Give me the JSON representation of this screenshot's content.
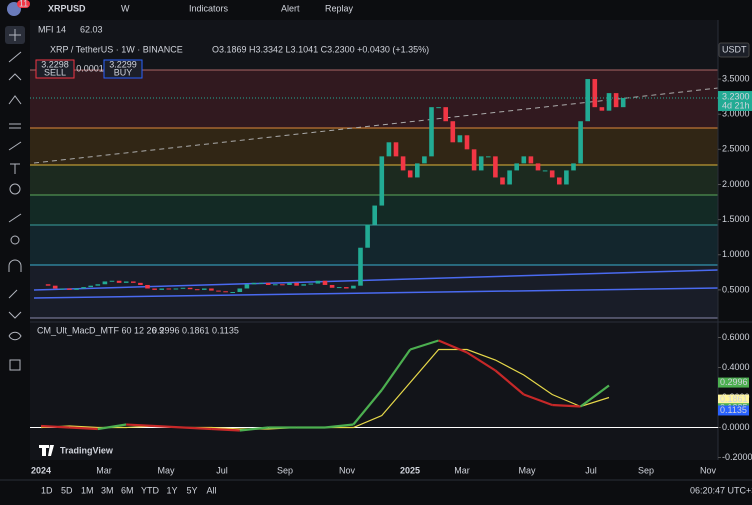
{
  "toolbar": {
    "symbol": "XRPUSD",
    "interval": "W",
    "indicators": "Indicators",
    "alert": "Alert",
    "replay": "Replay",
    "badge": "11"
  },
  "mfi": {
    "name": "MFI 14",
    "value": "62.03"
  },
  "legend": {
    "title": "XRP / TetherUS · 1W · BINANCE",
    "ohlc": "O3.1869 H3.3342 L3.1041 C3.2300 +0.0430 (+1.35%)"
  },
  "trade": {
    "sell_price": "3.2298",
    "sell": "SELL",
    "spread": "0.0001",
    "buy_price": "3.2299",
    "buy": "BUY"
  },
  "price_axis": {
    "currency": "USDT",
    "ylim": [
      0.1,
      3.7
    ],
    "yticks": [
      {
        "value": 3.5,
        "label": "3.5000"
      },
      {
        "value": 3,
        "label": "3.0000"
      },
      {
        "value": 2.5,
        "label": "2.5000"
      },
      {
        "value": 2,
        "label": "2.0000"
      },
      {
        "value": 1.5,
        "label": "1.5000"
      },
      {
        "value": 1,
        "label": "1.0000"
      },
      {
        "value": 0.5,
        "label": "0.5000"
      }
    ],
    "last_price": {
      "value": 3.23,
      "label": "3.2300"
    },
    "countdown": "4d 21h"
  },
  "candles": {
    "closes": [
      0.58,
      0.56,
      0.52,
      0.52,
      0.5,
      0.52,
      0.54,
      0.56,
      0.58,
      0.62,
      0.63,
      0.6,
      0.62,
      0.6,
      0.57,
      0.52,
      0.5,
      0.52,
      0.51,
      0.52,
      0.53,
      0.51,
      0.5,
      0.52,
      0.49,
      0.48,
      0.47,
      0.47,
      0.52,
      0.58,
      0.6,
      0.6,
      0.57,
      0.58,
      0.57,
      0.6,
      0.56,
      0.58,
      0.59,
      0.63,
      0.57,
      0.53,
      0.54,
      0.52,
      0.56,
      1.1,
      1.43,
      1.7,
      2.4,
      2.6,
      2.4,
      2.2,
      2.1,
      2.3,
      2.4,
      3.1,
      3.1,
      2.9,
      2.6,
      2.7,
      2.5,
      2.2,
      2.4,
      2.4,
      2.1,
      2.0,
      2.2,
      2.3,
      2.4,
      2.3,
      2.2,
      2.2,
      2.1,
      2.0,
      2.2,
      2.3,
      2.9,
      3.5,
      3.1,
      3.05,
      3.3,
      3.1,
      3.23
    ]
  },
  "macd": {
    "title": "CM_Ult_MacD_MTF 60 12 26 9",
    "v1": "0.2996",
    "v2": "0.1861",
    "v3": "0.1135",
    "ylim": [
      -0.25,
      0.65
    ],
    "yticks": [
      {
        "value": 0.6,
        "label": "0.6000"
      },
      {
        "value": 0.4,
        "label": "0.4000"
      },
      {
        "value": 0.2,
        "label": "0.2000"
      },
      {
        "value": 0,
        "label": "0.0000"
      },
      {
        "value": -0.2,
        "label": "-0.2000"
      }
    ],
    "badges": [
      {
        "value": 0.2996,
        "label": "0.2996"
      },
      {
        "value": 0.1861,
        "label": "0.1861"
      },
      {
        "value": 0.1285,
        "label": "0.1285"
      },
      {
        "value": 0.1135,
        "label": "0.1135"
      }
    ],
    "macd": [
      0.01,
      0.0,
      -0.01,
      0.02,
      0.01,
      0.0,
      -0.01,
      -0.02,
      0.0,
      0.0,
      0.0,
      0.02,
      0.25,
      0.52,
      0.58,
      0.5,
      0.38,
      0.22,
      0.15,
      0.14,
      0.28
    ],
    "signal": [
      0.0,
      0.01,
      0.0,
      0.0,
      0.01,
      0.0,
      0.0,
      -0.01,
      -0.01,
      0.0,
      0.0,
      0.0,
      0.08,
      0.3,
      0.52,
      0.52,
      0.45,
      0.35,
      0.22,
      0.14,
      0.2
    ]
  },
  "brand": "TradingView",
  "x_labels": [
    "2024",
    "Mar",
    "May",
    "Jul",
    "Sep",
    "Nov",
    "2025",
    "Mar",
    "May",
    "Jul",
    "Sep",
    "Nov"
  ],
  "ranges": [
    "1D",
    "5D",
    "1M",
    "3M",
    "6M",
    "YTD",
    "1Y",
    "5Y",
    "All"
  ],
  "clock": "06:20:47 UTC+3"
}
